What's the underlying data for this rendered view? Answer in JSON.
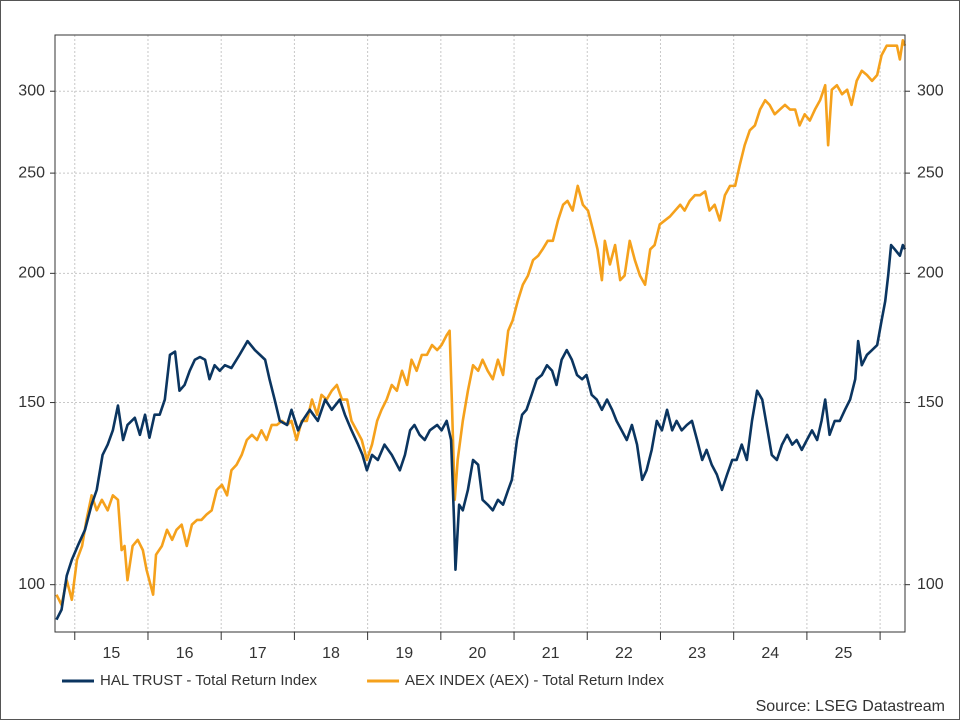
{
  "chart_data": {
    "type": "line",
    "source": "Source: LSEG Datastream",
    "log_scale": true,
    "grid": true,
    "legend": "bottom",
    "xlim": [
      2014.73,
      2026.34
    ],
    "xticks": [
      2015,
      2016,
      2017,
      2018,
      2019,
      2020,
      2021,
      2022,
      2023,
      2024,
      2025,
      2026
    ],
    "xtick_labels": [
      {
        "value": 2015.5,
        "label": "15"
      },
      {
        "value": 2016.5,
        "label": "16"
      },
      {
        "value": 2017.5,
        "label": "17"
      },
      {
        "value": 2018.5,
        "label": "18"
      },
      {
        "value": 2019.5,
        "label": "19"
      },
      {
        "value": 2020.5,
        "label": "20"
      },
      {
        "value": 2021.5,
        "label": "21"
      },
      {
        "value": 2022.5,
        "label": "22"
      },
      {
        "value": 2023.5,
        "label": "23"
      },
      {
        "value": 2024.5,
        "label": "24"
      },
      {
        "value": 2025.5,
        "label": "25"
      }
    ],
    "ylim": [
      90,
      340
    ],
    "yticks": [
      100,
      150,
      200,
      250,
      300
    ],
    "y2lim": [
      90,
      340
    ],
    "y2ticks": [
      100,
      150,
      200,
      250,
      300
    ],
    "series": [
      {
        "name": "HAL TRUST - Total Return Index",
        "color": "#0b3560",
        "x": [
          2014.75,
          2014.82,
          2014.89,
          2014.96,
          2015.04,
          2015.14,
          2015.23,
          2015.3,
          2015.38,
          2015.45,
          2015.52,
          2015.59,
          2015.66,
          2015.72,
          2015.82,
          2015.89,
          2015.96,
          2016.02,
          2016.09,
          2016.16,
          2016.23,
          2016.3,
          2016.37,
          2016.43,
          2016.5,
          2016.57,
          2016.64,
          2016.71,
          2016.78,
          2016.84,
          2016.91,
          2016.98,
          2017.05,
          2017.14,
          2017.25,
          2017.36,
          2017.46,
          2017.53,
          2017.6,
          2017.66,
          2017.73,
          2017.8,
          2017.9,
          2017.96,
          2018.05,
          2018.11,
          2018.21,
          2018.32,
          2018.42,
          2018.51,
          2018.62,
          2018.69,
          2018.78,
          2018.87,
          2018.93,
          2018.99,
          2019.06,
          2019.14,
          2019.23,
          2019.33,
          2019.44,
          2019.51,
          2019.58,
          2019.64,
          2019.71,
          2019.78,
          2019.85,
          2019.95,
          2020.01,
          2020.08,
          2020.14,
          2020.18,
          2020.2,
          2020.25,
          2020.3,
          2020.37,
          2020.44,
          2020.51,
          2020.57,
          2020.64,
          2020.71,
          2020.78,
          2020.85,
          2020.92,
          2020.97,
          2021.04,
          2021.11,
          2021.17,
          2021.24,
          2021.31,
          2021.38,
          2021.45,
          2021.52,
          2021.58,
          2021.65,
          2021.72,
          2021.79,
          2021.86,
          2021.93,
          2021.99,
          2022.06,
          2022.13,
          2022.2,
          2022.27,
          2022.34,
          2022.4,
          2022.47,
          2022.54,
          2022.61,
          2022.68,
          2022.75,
          2022.81,
          2022.88,
          2022.95,
          2023.02,
          2023.09,
          2023.16,
          2023.22,
          2023.29,
          2023.36,
          2023.43,
          2023.5,
          2023.57,
          2023.63,
          2023.7,
          2023.77,
          2023.84,
          2023.91,
          2023.98,
          2024.04,
          2024.11,
          2024.18,
          2024.25,
          2024.32,
          2024.39,
          2024.45,
          2024.52,
          2024.59,
          2024.66,
          2024.73,
          2024.8,
          2024.86,
          2024.93,
          2025.0,
          2025.07,
          2025.14,
          2025.2,
          2025.25,
          2025.31,
          2025.38,
          2025.45,
          2025.52,
          2025.59,
          2025.66,
          2025.7,
          2025.75,
          2025.82,
          2025.89,
          2025.96,
          2026.02,
          2026.07,
          2026.11,
          2026.15,
          2026.2,
          2026.27,
          2026.31,
          2026.34
        ],
        "values": [
          92.5,
          94.6,
          102,
          105.7,
          109,
          113,
          119.5,
          123.5,
          133.5,
          136.6,
          141,
          149,
          138,
          142.7,
          145,
          139.6,
          146,
          138.7,
          146,
          146,
          151,
          166.8,
          168,
          154,
          156,
          161,
          165,
          166,
          165,
          158,
          163,
          161,
          163,
          162,
          166.8,
          172,
          168.6,
          166.8,
          165,
          158,
          151,
          144,
          142.7,
          147.6,
          141,
          144,
          147.6,
          144,
          151,
          147.6,
          151,
          146,
          141,
          136.6,
          133.5,
          129,
          133.5,
          132,
          136.6,
          133.5,
          129,
          133.5,
          141,
          142.7,
          139.6,
          138,
          141,
          142.7,
          141,
          144,
          138,
          115.6,
          103.4,
          119.5,
          118,
          123.5,
          132,
          130.6,
          120.8,
          119.5,
          118,
          120.8,
          119.5,
          123.5,
          126.3,
          138,
          146,
          147.6,
          152.6,
          158,
          159.5,
          163,
          161,
          156,
          165,
          168.6,
          165,
          159.5,
          158,
          159.5,
          152.6,
          151,
          147.6,
          151,
          147.6,
          144,
          141,
          138,
          142.7,
          136.6,
          126.3,
          129,
          135,
          144,
          141,
          147.6,
          141,
          144,
          141,
          142.7,
          144,
          138,
          132,
          135,
          130.6,
          127.8,
          123.5,
          127.8,
          132,
          132,
          136.6,
          132,
          144,
          154,
          151,
          142.7,
          133.5,
          132,
          136.6,
          139.6,
          136.6,
          138,
          135,
          138,
          141,
          138,
          144,
          151,
          139.6,
          144,
          144,
          147.6,
          151,
          158,
          172,
          163,
          166.8,
          168.6,
          170.5,
          180,
          188,
          199,
          213,
          211,
          208,
          213,
          211
        ]
      },
      {
        "name": "AEX INDEX (AEX) - Total Return Index",
        "color": "#f5a11c",
        "x": [
          2014.75,
          2014.82,
          2014.89,
          2014.96,
          2015.03,
          2015.1,
          2015.16,
          2015.23,
          2015.3,
          2015.37,
          2015.45,
          2015.52,
          2015.59,
          2015.64,
          2015.68,
          2015.72,
          2015.79,
          2015.86,
          2015.93,
          2015.98,
          2016.07,
          2016.11,
          2016.19,
          2016.26,
          2016.33,
          2016.39,
          2016.46,
          2016.53,
          2016.6,
          2016.67,
          2016.73,
          2016.8,
          2016.87,
          2016.94,
          2017.01,
          2017.08,
          2017.14,
          2017.21,
          2017.28,
          2017.35,
          2017.42,
          2017.49,
          2017.55,
          2017.62,
          2017.69,
          2017.76,
          2017.83,
          2017.9,
          2017.96,
          2018.03,
          2018.1,
          2018.17,
          2018.24,
          2018.31,
          2018.37,
          2018.44,
          2018.51,
          2018.58,
          2018.65,
          2018.72,
          2018.78,
          2018.85,
          2018.92,
          2018.99,
          2019.06,
          2019.13,
          2019.19,
          2019.26,
          2019.33,
          2019.4,
          2019.47,
          2019.54,
          2019.6,
          2019.67,
          2019.74,
          2019.81,
          2019.88,
          2019.95,
          2020.01,
          2020.08,
          2020.12,
          2020.15,
          2020.19,
          2020.23,
          2020.3,
          2020.37,
          2020.44,
          2020.51,
          2020.57,
          2020.64,
          2020.71,
          2020.78,
          2020.85,
          2020.92,
          2020.98,
          2021.05,
          2021.12,
          2021.19,
          2021.26,
          2021.33,
          2021.39,
          2021.46,
          2021.53,
          2021.6,
          2021.67,
          2021.73,
          2021.8,
          2021.87,
          2021.94,
          2022.01,
          2022.08,
          2022.14,
          2022.2,
          2022.24,
          2022.31,
          2022.38,
          2022.45,
          2022.51,
          2022.58,
          2022.65,
          2022.72,
          2022.79,
          2022.86,
          2022.92,
          2022.99,
          2023.06,
          2023.13,
          2023.2,
          2023.27,
          2023.33,
          2023.4,
          2023.47,
          2023.54,
          2023.61,
          2023.67,
          2023.74,
          2023.81,
          2023.88,
          2023.95,
          2024.02,
          2024.08,
          2024.15,
          2024.22,
          2024.29,
          2024.36,
          2024.43,
          2024.49,
          2024.56,
          2024.63,
          2024.7,
          2024.77,
          2024.84,
          2024.9,
          2024.97,
          2025.04,
          2025.11,
          2025.18,
          2025.25,
          2025.29,
          2025.34,
          2025.41,
          2025.48,
          2025.55,
          2025.61,
          2025.68,
          2025.75,
          2025.82,
          2025.89,
          2025.96,
          2026.02,
          2026.09,
          2026.16,
          2026.23,
          2026.27,
          2026.31,
          2026.34
        ],
        "values": [
          97.8,
          95.6,
          101,
          96.7,
          105.7,
          109,
          115.5,
          122,
          118,
          120.8,
          118,
          122,
          120.8,
          108,
          109,
          101,
          109,
          110.5,
          108,
          103.4,
          97.8,
          106.9,
          109,
          113,
          110.5,
          113,
          114.3,
          109,
          114.3,
          115.5,
          115.5,
          116.9,
          118,
          123.5,
          124.9,
          122,
          129,
          130.6,
          133.5,
          138,
          139.6,
          138,
          141,
          138,
          142.7,
          142.7,
          144,
          142.7,
          144,
          138,
          144,
          144,
          151,
          146,
          152.6,
          151,
          154,
          156,
          151,
          151,
          144,
          141,
          138,
          132,
          136.6,
          144,
          147.6,
          151,
          156,
          154,
          161,
          156,
          165,
          161,
          166.8,
          166.8,
          170.5,
          168.6,
          170.5,
          174.3,
          176,
          151,
          120.8,
          132,
          144,
          154,
          163,
          161,
          165,
          161,
          158,
          165,
          159.5,
          176,
          180,
          188,
          195,
          199,
          206,
          208,
          211,
          215,
          215,
          225,
          233,
          235,
          230,
          243,
          233,
          230,
          220,
          211,
          197,
          215,
          204,
          213,
          197,
          199,
          215,
          206,
          199,
          195,
          211,
          213,
          223,
          225,
          227,
          230,
          233,
          230,
          235,
          238,
          238,
          240,
          230,
          233,
          225,
          238,
          243,
          243,
          254,
          266,
          275,
          278,
          288,
          294,
          291,
          285,
          288,
          291,
          288,
          288,
          278,
          285,
          281,
          288,
          294,
          304,
          266,
          301,
          304,
          298,
          301,
          291,
          307,
          314,
          311,
          307,
          311,
          325,
          332,
          332,
          332,
          322,
          336,
          332
        ]
      }
    ]
  }
}
